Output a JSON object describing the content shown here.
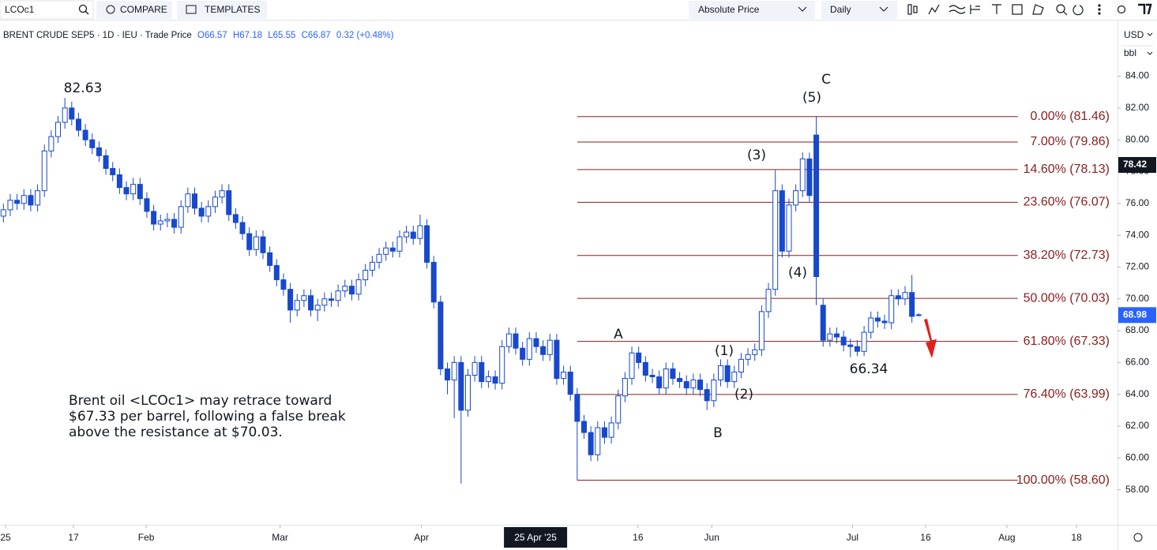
{
  "toolbar": {
    "symbol": "LCOc1",
    "compare": "COMPARE",
    "templates": "TEMPLATES",
    "price_mode": "Absolute Price",
    "interval": "Daily"
  },
  "chart_data": {
    "type": "candlestick",
    "legend": {
      "symbol_info": "BRENT CRUDE SEP5 · 1D · IEU · Trade Price",
      "open": "O66.57",
      "high": "H67.18",
      "low": "L65.55",
      "close": "C66.87",
      "change": "0.32 (+0.48%)"
    },
    "currency": "USD",
    "unit": "bbl",
    "color": "#1848cc",
    "open": [
      75.2,
      75.6,
      76.2,
      76.0,
      76.5,
      75.9,
      76.8,
      79.3,
      80.2,
      81.1,
      82.0,
      81.3,
      80.6,
      80.0,
      79.5,
      79.0,
      78.2,
      77.8,
      77.0,
      76.6,
      77.2,
      76.3,
      75.5,
      74.7,
      74.9,
      75.0,
      74.5,
      75.8,
      76.6,
      75.7,
      75.2,
      75.8,
      76.4,
      76.8,
      75.3,
      74.8,
      74.1,
      73.1,
      73.9,
      72.9,
      72.1,
      71.2,
      70.6,
      69.3,
      69.9,
      70.2,
      69.3,
      69.6,
      70.0,
      69.9,
      70.5,
      70.8,
      70.3,
      71.2,
      71.8,
      72.3,
      72.8,
      73.2,
      73.0,
      73.9,
      74.2,
      73.8,
      74.6,
      72.3,
      69.8,
      65.6,
      64.9,
      66.0,
      63.0,
      65.2,
      66.0,
      64.8,
      65.1,
      64.7,
      67.0,
      67.8,
      66.9,
      66.2,
      67.5,
      67.0,
      66.5,
      67.4,
      65.0,
      65.4,
      64.0,
      62.3,
      61.6,
      60.2,
      61.9,
      61.3,
      62.2,
      63.9,
      65.0,
      66.6,
      66.0,
      65.2,
      65.1,
      64.4,
      65.6,
      65.0,
      64.8,
      64.4,
      64.9,
      64.3,
      63.6,
      64.9,
      65.8,
      64.8,
      65.4,
      66.2,
      66.5,
      66.8,
      69.2,
      70.6,
      76.8,
      73.0,
      75.9,
      76.8,
      78.8,
      80.3,
      69.6,
      67.4,
      67.8,
      67.6,
      67.1,
      67.0,
      66.7,
      67.9,
      68.8,
      68.6,
      68.5,
      70.2,
      70.0,
      70.4,
      69.0
    ],
    "high": [
      76.0,
      76.6,
      76.6,
      76.9,
      76.9,
      77.2,
      79.7,
      80.6,
      81.5,
      82.63,
      82.4,
      81.7,
      81.0,
      80.4,
      79.9,
      79.4,
      78.6,
      78.2,
      77.4,
      77.6,
      77.6,
      76.7,
      75.9,
      75.3,
      75.4,
      75.4,
      76.2,
      77.0,
      77.0,
      76.1,
      76.2,
      76.8,
      77.2,
      77.2,
      75.7,
      75.2,
      74.5,
      74.3,
      74.3,
      73.3,
      72.5,
      71.6,
      71.0,
      70.3,
      70.6,
      70.6,
      70.0,
      70.4,
      70.4,
      70.9,
      71.2,
      71.2,
      71.6,
      72.2,
      72.7,
      73.2,
      73.6,
      73.6,
      74.3,
      74.6,
      74.6,
      75.3,
      75.0,
      72.7,
      70.2,
      66.0,
      66.4,
      66.4,
      65.6,
      66.4,
      66.4,
      65.5,
      65.5,
      67.4,
      68.2,
      68.2,
      67.3,
      67.9,
      67.9,
      67.4,
      67.8,
      67.8,
      65.8,
      65.8,
      64.4,
      62.7,
      62.0,
      62.3,
      62.3,
      62.6,
      64.3,
      65.4,
      67.0,
      67.0,
      66.4,
      65.6,
      65.5,
      66.0,
      66.0,
      65.4,
      65.2,
      65.3,
      65.3,
      64.7,
      65.3,
      66.2,
      66.2,
      65.8,
      66.6,
      66.9,
      67.2,
      69.6,
      71.0,
      78.1,
      77.2,
      76.3,
      77.2,
      79.2,
      79.2,
      81.46,
      70.0,
      68.2,
      68.2,
      68.0,
      67.5,
      67.4,
      68.3,
      69.2,
      69.2,
      69.0,
      70.6,
      70.6,
      70.8,
      71.5,
      69.1
    ],
    "low": [
      74.8,
      75.2,
      75.6,
      75.6,
      75.5,
      75.5,
      76.4,
      78.9,
      79.8,
      80.7,
      80.9,
      80.2,
      79.6,
      79.1,
      78.6,
      77.8,
      77.4,
      76.6,
      76.2,
      76.2,
      75.9,
      75.1,
      74.3,
      74.3,
      74.5,
      74.1,
      74.1,
      75.4,
      75.3,
      74.8,
      74.8,
      75.4,
      76.0,
      74.9,
      74.4,
      73.7,
      72.7,
      72.7,
      72.5,
      71.7,
      70.8,
      70.2,
      68.5,
      68.9,
      69.5,
      68.9,
      68.6,
      69.2,
      69.5,
      69.5,
      70.1,
      69.9,
      69.9,
      70.8,
      71.4,
      71.9,
      72.4,
      72.6,
      72.6,
      73.5,
      73.4,
      73.4,
      71.9,
      69.4,
      65.2,
      64.0,
      62.5,
      58.4,
      62.6,
      64.8,
      64.4,
      64.4,
      64.3,
      64.3,
      66.6,
      66.5,
      65.8,
      65.8,
      66.6,
      66.1,
      66.1,
      64.6,
      64.6,
      63.6,
      58.6,
      61.2,
      59.8,
      59.8,
      60.9,
      60.9,
      61.8,
      63.5,
      64.6,
      65.6,
      64.8,
      64.7,
      64.0,
      64.0,
      64.6,
      64.4,
      64.0,
      64.0,
      63.9,
      63.0,
      63.2,
      64.5,
      64.4,
      64.4,
      65.0,
      65.8,
      66.1,
      66.4,
      68.8,
      70.2,
      72.6,
      72.6,
      75.5,
      76.4,
      76.1,
      69.6,
      67.0,
      67.0,
      67.2,
      66.7,
      66.34,
      66.4,
      66.4,
      67.5,
      68.2,
      68.1,
      68.1,
      69.6,
      69.6,
      68.5,
      68.9
    ],
    "close": [
      75.6,
      76.2,
      76.0,
      76.5,
      75.9,
      76.8,
      79.3,
      80.2,
      81.1,
      82.0,
      81.3,
      80.6,
      80.0,
      79.5,
      79.0,
      78.2,
      77.8,
      77.0,
      76.6,
      77.2,
      76.3,
      75.5,
      74.7,
      74.9,
      75.0,
      74.5,
      75.8,
      76.6,
      75.7,
      75.2,
      75.8,
      76.4,
      76.8,
      75.3,
      74.8,
      74.1,
      73.1,
      73.9,
      72.9,
      72.1,
      71.2,
      70.6,
      69.3,
      69.9,
      70.2,
      69.3,
      69.6,
      70.0,
      69.9,
      70.5,
      70.8,
      70.3,
      71.2,
      71.8,
      72.3,
      72.8,
      73.2,
      73.0,
      73.9,
      74.2,
      73.8,
      74.6,
      72.3,
      69.8,
      65.6,
      64.9,
      66.0,
      63.0,
      65.2,
      66.0,
      64.8,
      65.1,
      64.7,
      67.0,
      67.8,
      66.9,
      66.2,
      67.5,
      67.0,
      66.5,
      67.4,
      65.0,
      65.4,
      64.0,
      62.3,
      61.6,
      60.2,
      61.9,
      61.3,
      62.2,
      63.9,
      65.0,
      66.6,
      66.0,
      65.2,
      65.1,
      64.4,
      65.6,
      65.0,
      64.8,
      64.4,
      64.9,
      64.3,
      63.6,
      64.9,
      65.8,
      64.8,
      65.4,
      66.2,
      66.5,
      66.8,
      69.2,
      70.6,
      76.8,
      73.0,
      75.9,
      76.8,
      78.8,
      76.5,
      71.4,
      67.4,
      67.8,
      67.6,
      67.1,
      67.0,
      66.7,
      67.9,
      68.8,
      68.6,
      68.5,
      70.2,
      70.0,
      70.4,
      68.9,
      68.98
    ],
    "xlim": [
      -0.5,
      163.1
    ],
    "xticks": [
      {
        "value": 0.31,
        "label": "25"
      },
      {
        "value": 10.25,
        "label": "17"
      },
      {
        "value": 20.9,
        "label": "Feb"
      },
      {
        "value": 40.5,
        "label": "Mar"
      },
      {
        "value": 61.2,
        "label": "Apr"
      },
      {
        "value": 92.9,
        "label": "16"
      },
      {
        "value": 103.7,
        "label": "Jun"
      },
      {
        "value": 124.3,
        "label": "Jul"
      },
      {
        "value": 135.0,
        "label": "16"
      },
      {
        "value": 146.9,
        "label": "Aug"
      },
      {
        "value": 157.1,
        "label": "18"
      }
    ],
    "crosshair_x": {
      "value": 77.9,
      "label": "25 Apr '25"
    },
    "ylim": [
      55.8,
      87.3
    ],
    "yticks": [
      {
        "value": 58,
        "label": "58.00"
      },
      {
        "value": 60,
        "label": "60.00"
      },
      {
        "value": 62,
        "label": "62.00"
      },
      {
        "value": 64,
        "label": "64.00"
      },
      {
        "value": 66,
        "label": "66.00"
      },
      {
        "value": 68,
        "label": "68.00"
      },
      {
        "value": 70,
        "label": "70.00"
      },
      {
        "value": 72,
        "label": "72.00"
      },
      {
        "value": 74,
        "label": "74.00"
      },
      {
        "value": 76,
        "label": "76.00"
      },
      {
        "value": 78,
        "label": "78.00"
      },
      {
        "value": 80,
        "label": "80.00"
      },
      {
        "value": 82,
        "label": "82.00"
      },
      {
        "value": 84,
        "label": "84.00"
      }
    ],
    "price_labels": [
      {
        "value": 78.42,
        "color": "#131722"
      },
      {
        "value": 68.98,
        "color": "#2962ff"
      }
    ],
    "fib_color": "#8b1d1d",
    "fib_levels": [
      {
        "value": 81.46,
        "label": "0.00% (81.46)"
      },
      {
        "value": 79.86,
        "label": "7.00% (79.86)"
      },
      {
        "value": 78.13,
        "label": "14.60% (78.13)"
      },
      {
        "value": 76.07,
        "label": "23.60% (76.07)"
      },
      {
        "value": 72.73,
        "label": "38.20% (72.73)"
      },
      {
        "value": 70.03,
        "label": "50.00% (70.03)"
      },
      {
        "value": 67.33,
        "label": "61.80% (67.33)"
      },
      {
        "value": 63.99,
        "label": "76.40% (63.99)"
      },
      {
        "value": 58.6,
        "label": "100.00% (58.60)"
      }
    ],
    "annotations": [
      "82.63",
      "C",
      "(5)",
      "(3)",
      "(4)",
      "A",
      "(1)",
      "(2)",
      "B",
      "66.34"
    ],
    "note": [
      "Brent oil <LCOc1> may retrace toward",
      "$67.33 per barrel, following a false break",
      "above the resistance at $70.03."
    ]
  }
}
